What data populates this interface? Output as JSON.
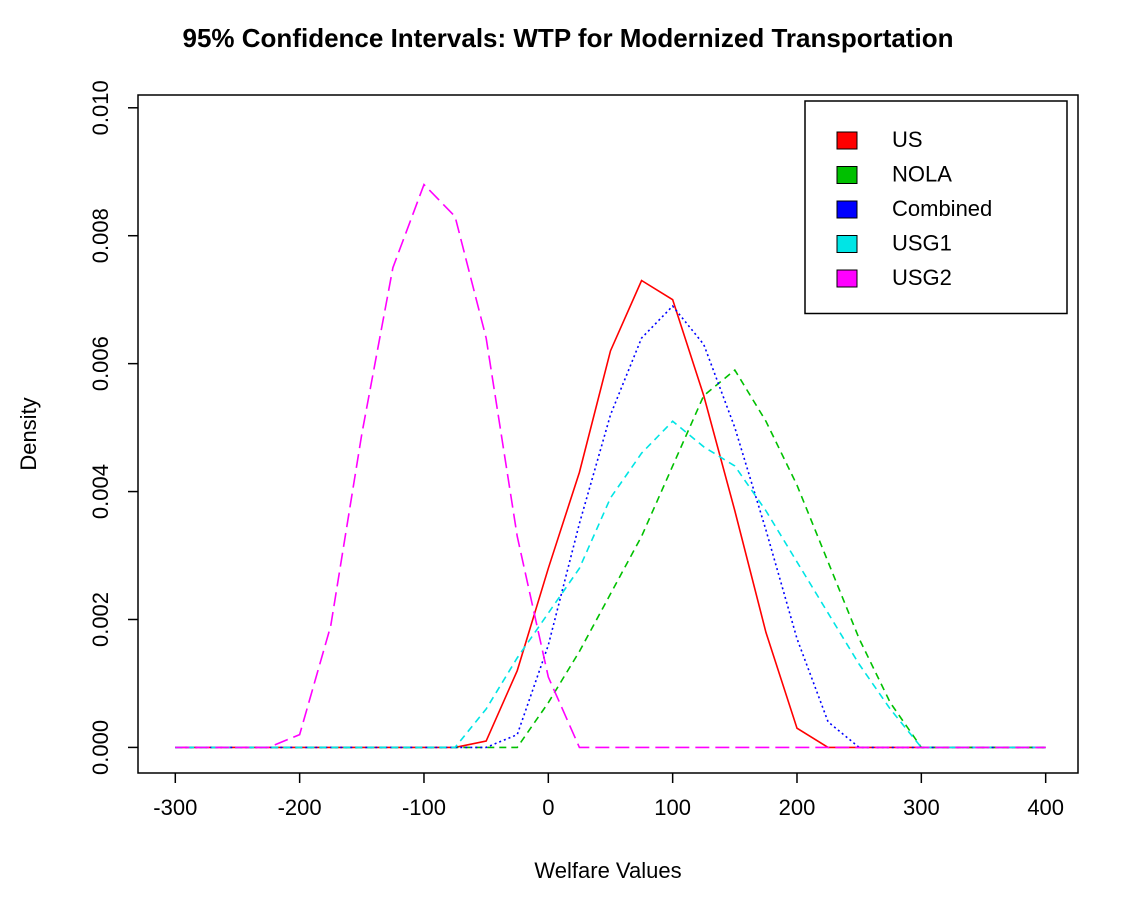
{
  "chart_data": {
    "type": "line",
    "title": "95% Confidence Intervals: WTP for Modernized Transportation",
    "x_label": "Welfare Values",
    "y_label": "Density",
    "x": [
      -300,
      -275,
      -250,
      -225,
      -200,
      -175,
      -150,
      -125,
      -100,
      -75,
      -50,
      -25,
      0,
      25,
      50,
      75,
      100,
      125,
      150,
      175,
      200,
      225,
      250,
      275,
      300,
      325,
      350,
      375,
      400
    ],
    "series": [
      {
        "name": "US",
        "color": "#ff0000",
        "linestyle": "solid",
        "values": [
          0,
          0,
          0,
          0,
          0,
          0,
          0,
          0,
          0,
          0,
          0.0001,
          0.0012,
          0.0028,
          0.0043,
          0.0062,
          0.0073,
          0.007,
          0.0055,
          0.0037,
          0.0018,
          0.0003,
          0,
          0,
          0,
          0,
          0,
          0,
          0,
          0
        ]
      },
      {
        "name": "NOLA",
        "color": "#00c000",
        "linestyle": "dashed",
        "values": [
          0,
          0,
          0,
          0,
          0,
          0,
          0,
          0,
          0,
          0,
          0,
          0,
          0.0007,
          0.0015,
          0.0024,
          0.0033,
          0.0044,
          0.0055,
          0.0059,
          0.0051,
          0.0041,
          0.0029,
          0.0017,
          0.0007,
          0,
          0,
          0,
          0,
          0
        ]
      },
      {
        "name": "Combined",
        "color": "#0000ff",
        "linestyle": "dotted",
        "values": [
          0,
          0,
          0,
          0,
          0,
          0,
          0,
          0,
          0,
          0,
          0,
          0.0002,
          0.0016,
          0.0035,
          0.0052,
          0.0064,
          0.0069,
          0.0063,
          0.005,
          0.0034,
          0.0017,
          0.0004,
          0,
          0,
          0,
          0,
          0,
          0,
          0
        ]
      },
      {
        "name": "USG1",
        "color": "#00e5e5",
        "linestyle": "dashed",
        "values": [
          0,
          0,
          0,
          0,
          0,
          0,
          0,
          0,
          0,
          0,
          0.0006,
          0.0014,
          0.0021,
          0.0028,
          0.0039,
          0.0046,
          0.0051,
          0.0047,
          0.0044,
          0.0037,
          0.0029,
          0.0021,
          0.0013,
          0.0006,
          0,
          0,
          0,
          0,
          0
        ]
      },
      {
        "name": "USG2",
        "color": "#ff00ff",
        "linestyle": "longdash",
        "values": [
          0,
          0,
          0,
          0,
          0.0002,
          0.0019,
          0.0049,
          0.0075,
          0.0088,
          0.0083,
          0.0064,
          0.0033,
          0.0011,
          0,
          0,
          0,
          0,
          0,
          0,
          0,
          0,
          0,
          0,
          0,
          0,
          0,
          0,
          0,
          0
        ]
      }
    ],
    "xlim": [
      -330,
      426
    ],
    "ylim": [
      -0.0004,
      0.0102
    ],
    "xticks": [
      -300,
      -200,
      -100,
      0,
      100,
      200,
      300,
      400
    ],
    "yticks": [
      {
        "value": 0,
        "label": "0.000"
      },
      {
        "value": 0.002,
        "label": "0.002"
      },
      {
        "value": 0.004,
        "label": "0.004"
      },
      {
        "value": 0.006,
        "label": "0.006"
      },
      {
        "value": 0.008,
        "label": "0.008"
      },
      {
        "value": 0.01,
        "label": "0.010"
      }
    ],
    "legend": "top-right"
  }
}
